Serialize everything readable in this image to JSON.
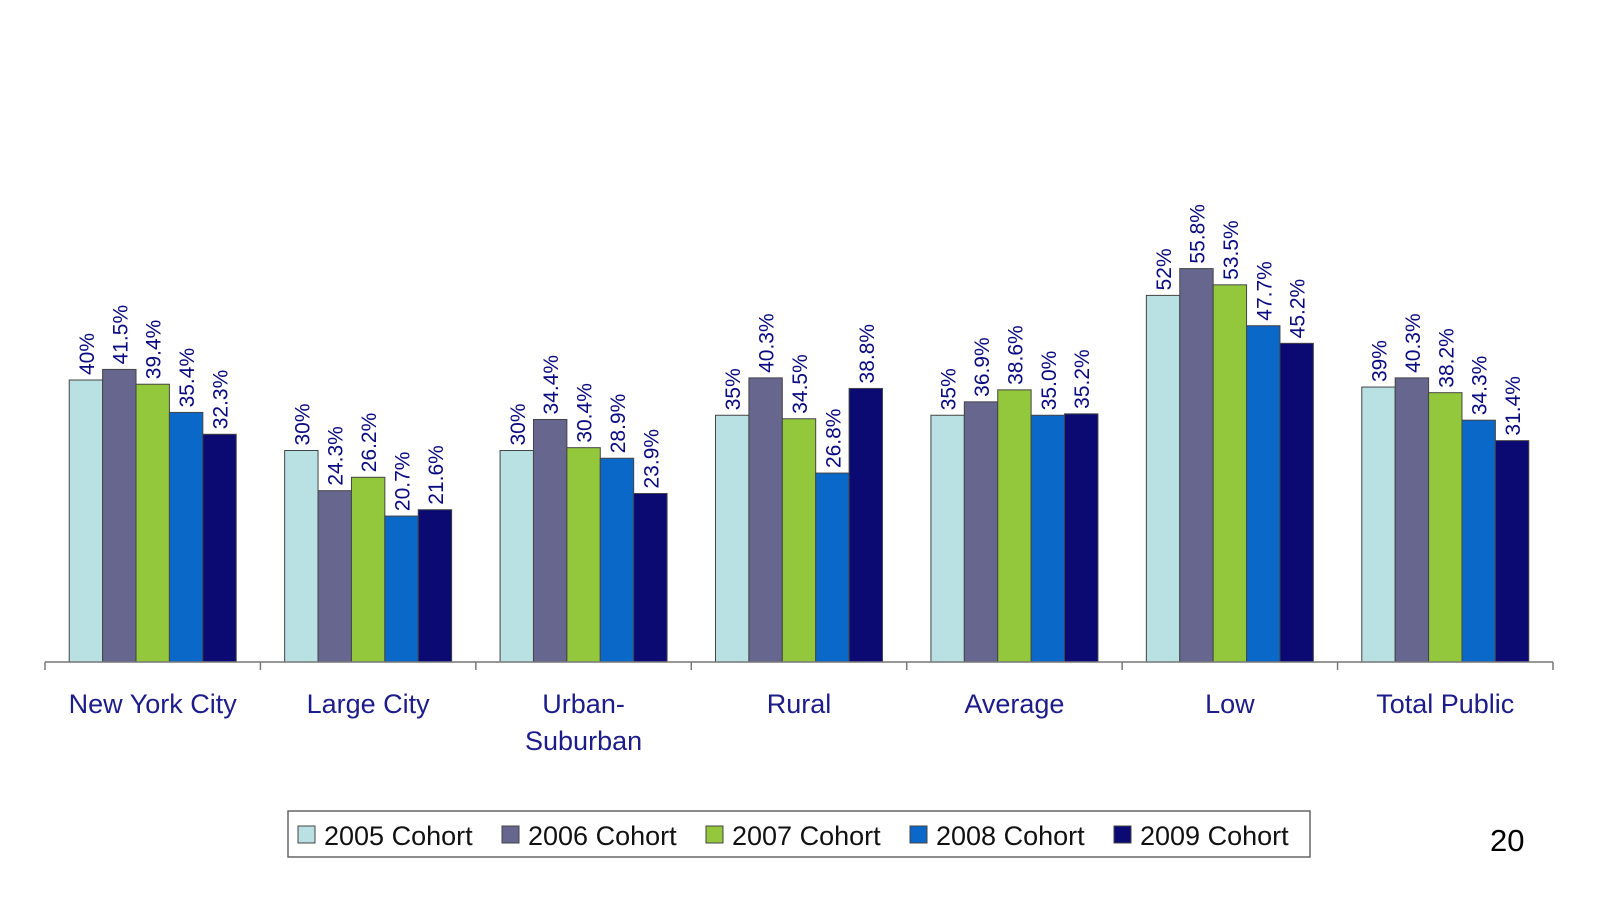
{
  "page_number": "20",
  "chart_data": {
    "type": "bar",
    "title": "",
    "xlabel": "",
    "ylabel": "",
    "ylim": [
      0,
      60
    ],
    "grid": false,
    "legend_position": "bottom",
    "categories": [
      "New York City",
      "Large City",
      "Urban-Suburban",
      "Rural",
      "Average",
      "Low",
      "Total Public"
    ],
    "series": [
      {
        "name": "2005 Cohort",
        "color": "#b9e0e3",
        "values": [
          40,
          30,
          30,
          35,
          35,
          52,
          39
        ],
        "labels": [
          "40%",
          "30%",
          "30%",
          "35%",
          "35%",
          "52%",
          "39%"
        ]
      },
      {
        "name": "2006 Cohort",
        "color": "#66668f",
        "values": [
          41.5,
          24.3,
          34.4,
          40.3,
          36.9,
          55.8,
          40.3
        ],
        "labels": [
          "41.5%",
          "24.3%",
          "34.4%",
          "40.3%",
          "36.9%",
          "55.8%",
          "40.3%"
        ]
      },
      {
        "name": "2007 Cohort",
        "color": "#94c83c",
        "values": [
          39.4,
          26.2,
          30.4,
          34.5,
          38.6,
          53.5,
          38.2
        ],
        "labels": [
          "39.4%",
          "26.2%",
          "30.4%",
          "34.5%",
          "38.6%",
          "53.5%",
          "38.2%"
        ]
      },
      {
        "name": "2008 Cohort",
        "color": "#0a68c8",
        "values": [
          35.4,
          20.7,
          28.9,
          26.8,
          35.0,
          47.7,
          34.3
        ],
        "labels": [
          "35.4%",
          "20.7%",
          "28.9%",
          "26.8%",
          "35.0%",
          "47.7%",
          "34.3%"
        ]
      },
      {
        "name": "2009 Cohort",
        "color": "#0a0a72",
        "values": [
          32.3,
          21.6,
          23.9,
          38.8,
          35.2,
          45.2,
          31.4
        ],
        "labels": [
          "32.3%",
          "21.6%",
          "23.9%",
          "38.8%",
          "35.2%",
          "45.2%",
          "31.4%"
        ]
      }
    ]
  }
}
